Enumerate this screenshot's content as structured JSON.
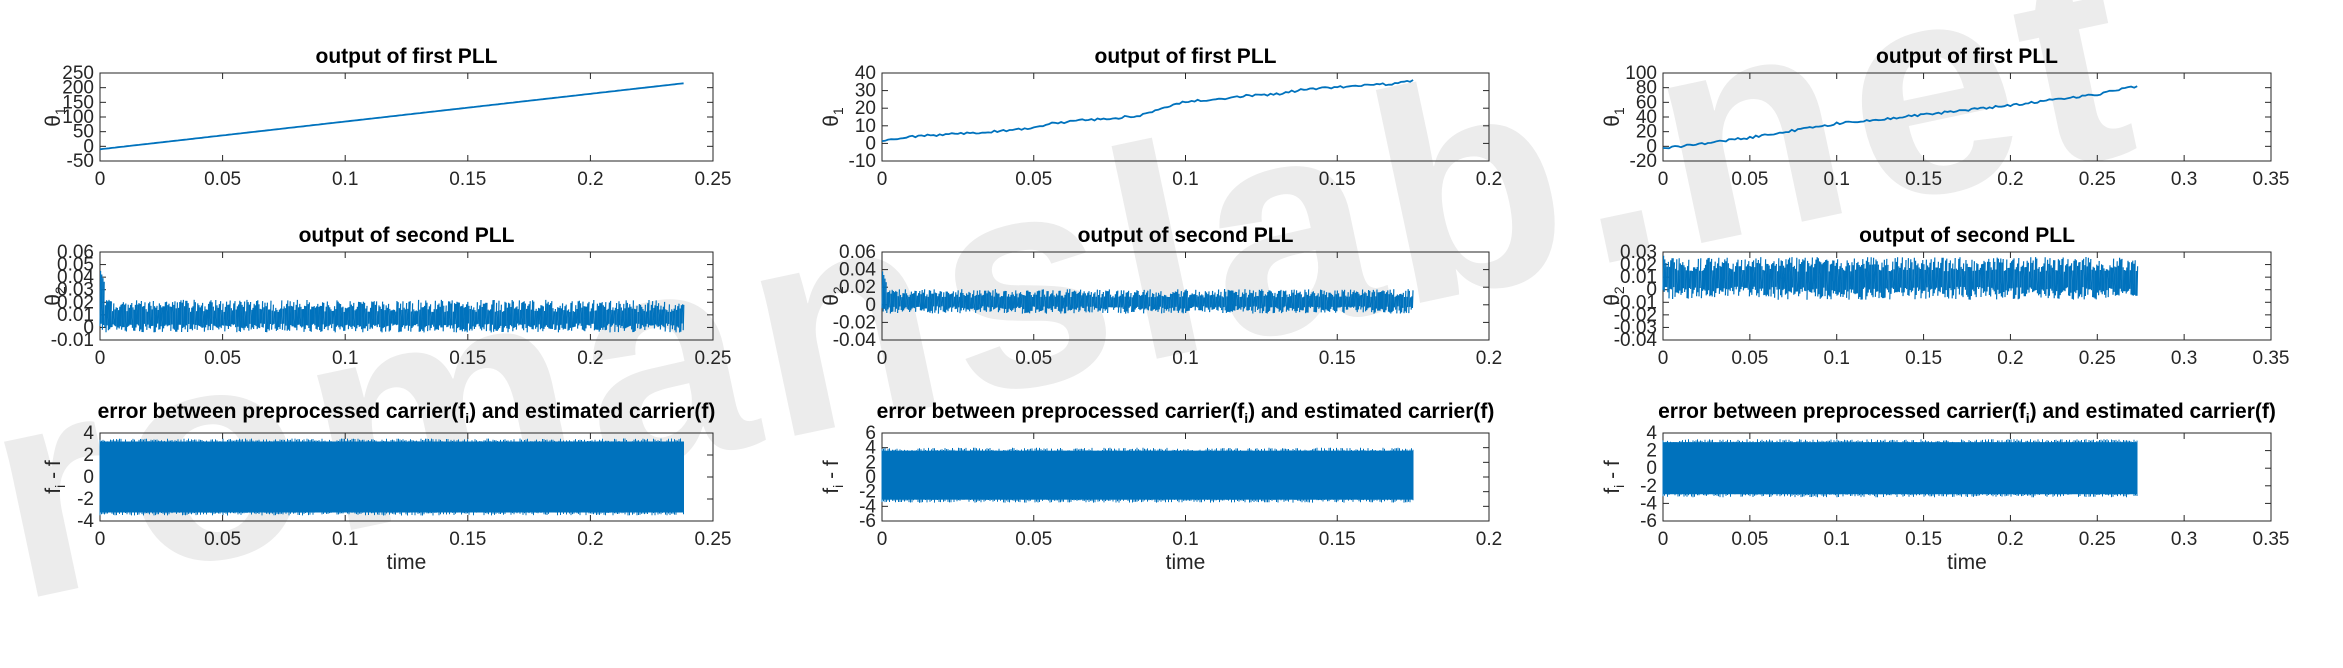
{
  "watermark": {
    "text": "romanslab.net"
  },
  "colors": {
    "series": "#0072bd",
    "axis": "#262626",
    "background": "#ffffff"
  },
  "chart_data": [
    {
      "type": "line",
      "title": "output of first PLL",
      "xlabel": "",
      "ylabel": "θ1",
      "xlim": [
        0,
        0.25
      ],
      "ylim": [
        -50,
        250
      ],
      "xticks": [
        "0",
        "0.05",
        "0.1",
        "0.15",
        "0.2",
        "0.25"
      ],
      "yticks": [
        "-50",
        "0",
        "50",
        "100",
        "150",
        "200",
        "250"
      ],
      "series": [
        {
          "x": [
            0,
            0.238
          ],
          "y": [
            -10,
            215
          ]
        }
      ]
    },
    {
      "type": "line",
      "title": "output of first PLL",
      "xlabel": "",
      "ylabel": "θ1",
      "xlim": [
        0,
        0.2
      ],
      "ylim": [
        -10,
        40
      ],
      "xticks": [
        "0",
        "0.05",
        "0.1",
        "0.15",
        "0.2"
      ],
      "yticks": [
        "-10",
        "0",
        "10",
        "20",
        "30",
        "40"
      ],
      "series": [
        {
          "x": [
            0,
            0.01,
            0.02,
            0.04,
            0.05,
            0.055,
            0.065,
            0.075,
            0.085,
            0.095,
            0.1,
            0.11,
            0.12,
            0.13,
            0.14,
            0.15,
            0.16,
            0.17,
            0.175
          ],
          "y": [
            1,
            4,
            5,
            7,
            9,
            11,
            13,
            14,
            16,
            21,
            24,
            25,
            27,
            28,
            31,
            32,
            33,
            34,
            36
          ]
        }
      ]
    },
    {
      "type": "line",
      "title": "output of first PLL",
      "xlabel": "",
      "ylabel": "θ1",
      "xlim": [
        0,
        0.35
      ],
      "ylim": [
        -20,
        100
      ],
      "xticks": [
        "0",
        "0.05",
        "0.1",
        "0.15",
        "0.2",
        "0.25",
        "0.3",
        "0.35"
      ],
      "yticks": [
        "-20",
        "0",
        "20",
        "40",
        "60",
        "80",
        "100"
      ],
      "series": [
        {
          "x": [
            0,
            0.05,
            0.1,
            0.15,
            0.2,
            0.25,
            0.273
          ],
          "y": [
            -3,
            12,
            31,
            43,
            56,
            71,
            82
          ]
        }
      ]
    },
    {
      "type": "line",
      "title": "output of second PLL",
      "xlabel": "",
      "ylabel": "θ2",
      "xlim": [
        0,
        0.25
      ],
      "ylim": [
        -0.01,
        0.06
      ],
      "xticks": [
        "0",
        "0.05",
        "0.1",
        "0.15",
        "0.2",
        "0.25"
      ],
      "yticks": [
        "-0.01",
        "0",
        "0.01",
        "0.02",
        "0.03",
        "0.04",
        "0.05",
        "0.06"
      ],
      "series": [
        {
          "x": [
            0,
            0.238
          ],
          "y_center": 0.007,
          "y_band": [
            -0.004,
            0.022
          ],
          "y_peak": 0.045
        }
      ]
    },
    {
      "type": "line",
      "title": "output of second PLL",
      "xlabel": "",
      "ylabel": "θ2",
      "xlim": [
        0,
        0.2
      ],
      "ylim": [
        -0.04,
        0.06
      ],
      "xticks": [
        "0",
        "0.05",
        "0.1",
        "0.15",
        "0.2"
      ],
      "yticks": [
        "-0.04",
        "-0.02",
        "0",
        "0.02",
        "0.04",
        "0.06"
      ],
      "series": [
        {
          "x": [
            0,
            0.175
          ],
          "y_center": 0.003,
          "y_band": [
            -0.01,
            0.018
          ],
          "y_peak": 0.038
        }
      ]
    },
    {
      "type": "line",
      "title": "output of second PLL",
      "xlabel": "",
      "ylabel": "θ2",
      "xlim": [
        0,
        0.35
      ],
      "ylim": [
        -0.04,
        0.03
      ],
      "xticks": [
        "0",
        "0.05",
        "0.1",
        "0.15",
        "0.2",
        "0.25",
        "0.3",
        "0.35"
      ],
      "yticks": [
        "-0.04",
        "-0.03",
        "-0.02",
        "-0.01",
        "0",
        "0.01",
        "0.02",
        "0.03"
      ],
      "series": [
        {
          "x": [
            0,
            0.273
          ],
          "y_center": 0.008,
          "y_band": [
            -0.008,
            0.026
          ],
          "y_peak": 0.027
        }
      ]
    },
    {
      "type": "area",
      "title": "error between preprocessed carrier(fi) and estimated carrier(f)",
      "xlabel": "time",
      "ylabel": "fi - f",
      "xlim": [
        0,
        0.25
      ],
      "ylim": [
        -4,
        4
      ],
      "xticks": [
        "0",
        "0.05",
        "0.1",
        "0.15",
        "0.2",
        "0.25"
      ],
      "yticks": [
        "-4",
        "-2",
        "0",
        "2",
        "4"
      ],
      "series": [
        {
          "x": [
            0,
            0.238
          ],
          "y_band": [
            -3.5,
            3.5
          ]
        }
      ]
    },
    {
      "type": "area",
      "title": "error between preprocessed carrier(fi) and estimated carrier(f)",
      "xlabel": "time",
      "ylabel": "fi - f",
      "xlim": [
        0,
        0.2
      ],
      "ylim": [
        -6,
        6
      ],
      "xticks": [
        "0",
        "0.05",
        "0.1",
        "0.15",
        "0.2"
      ],
      "yticks": [
        "-6",
        "-4",
        "-2",
        "0",
        "2",
        "4",
        "6"
      ],
      "series": [
        {
          "x": [
            0,
            0.175
          ],
          "y_band": [
            -3.5,
            4
          ]
        }
      ]
    },
    {
      "type": "area",
      "title": "error between preprocessed carrier(fi) and estimated carrier(f)",
      "xlabel": "time",
      "ylabel": "fi - f",
      "xlim": [
        0,
        0.35
      ],
      "ylim": [
        -6,
        4
      ],
      "xticks": [
        "0",
        "0.05",
        "0.1",
        "0.15",
        "0.2",
        "0.25",
        "0.3",
        "0.35"
      ],
      "yticks": [
        "-6",
        "-4",
        "-2",
        "0",
        "2",
        "4"
      ],
      "series": [
        {
          "x": [
            0,
            0.273
          ],
          "y_band": [
            -3.3,
            3.3
          ]
        }
      ]
    }
  ]
}
